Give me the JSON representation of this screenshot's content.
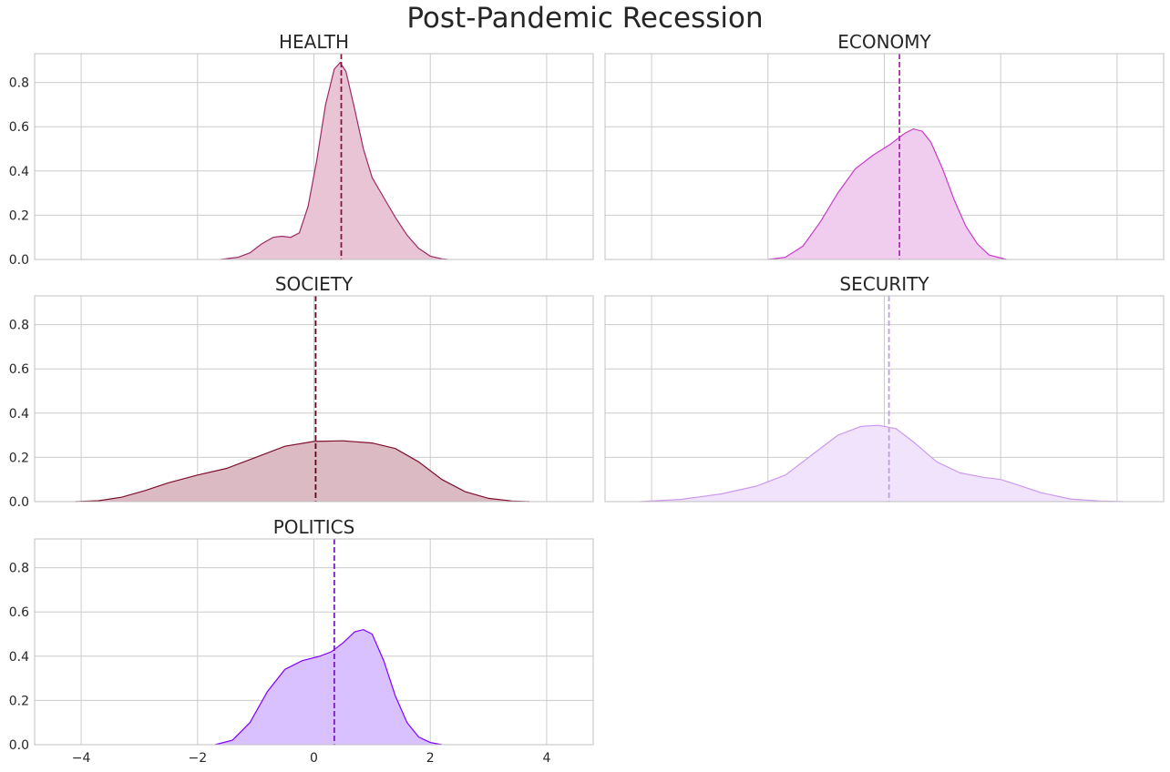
{
  "chart_data": {
    "type": "kde-facets",
    "title": "Post-Pandemic Recession",
    "xlim": [
      -4.8,
      4.8
    ],
    "ylim": [
      0,
      0.93
    ],
    "x_ticks": [
      -4,
      -2,
      0,
      2,
      4
    ],
    "x_tick_labels": [
      "−4",
      "−2",
      "0",
      "2",
      "4"
    ],
    "y_ticks": [
      0,
      0.2,
      0.4,
      0.6,
      0.8
    ],
    "y_tick_labels": [
      "0.0",
      "0.2",
      "0.4",
      "0.6",
      "0.8"
    ],
    "grid": true,
    "panels": [
      {
        "name": "HEALTH",
        "color": "#9e2a66",
        "fill": "#e8c4d4",
        "mean": 0.47,
        "mean_color": "#7a1a40",
        "points": [
          [
            -1.6,
            0
          ],
          [
            -1.3,
            0.01
          ],
          [
            -1.1,
            0.03
          ],
          [
            -0.9,
            0.07
          ],
          [
            -0.7,
            0.1
          ],
          [
            -0.55,
            0.105
          ],
          [
            -0.4,
            0.1
          ],
          [
            -0.25,
            0.12
          ],
          [
            -0.1,
            0.24
          ],
          [
            0.05,
            0.45
          ],
          [
            0.2,
            0.7
          ],
          [
            0.35,
            0.86
          ],
          [
            0.45,
            0.89
          ],
          [
            0.55,
            0.85
          ],
          [
            0.7,
            0.68
          ],
          [
            0.85,
            0.5
          ],
          [
            1.0,
            0.37
          ],
          [
            1.2,
            0.28
          ],
          [
            1.4,
            0.19
          ],
          [
            1.6,
            0.11
          ],
          [
            1.8,
            0.05
          ],
          [
            2.0,
            0.015
          ],
          [
            2.2,
            0.003
          ],
          [
            2.3,
            0
          ]
        ]
      },
      {
        "name": "ECONOMY",
        "color": "#c63cc9",
        "fill": "#f0cdef",
        "mean": 0.26,
        "mean_color": "#b02ab8",
        "points": [
          [
            -2.0,
            0
          ],
          [
            -1.7,
            0.01
          ],
          [
            -1.4,
            0.06
          ],
          [
            -1.1,
            0.17
          ],
          [
            -0.8,
            0.3
          ],
          [
            -0.5,
            0.41
          ],
          [
            -0.2,
            0.47
          ],
          [
            0.1,
            0.52
          ],
          [
            0.35,
            0.57
          ],
          [
            0.5,
            0.59
          ],
          [
            0.65,
            0.58
          ],
          [
            0.8,
            0.53
          ],
          [
            1.0,
            0.41
          ],
          [
            1.2,
            0.27
          ],
          [
            1.4,
            0.15
          ],
          [
            1.6,
            0.07
          ],
          [
            1.8,
            0.02
          ],
          [
            2.1,
            0
          ]
        ]
      },
      {
        "name": "SOCIETY",
        "color": "#7d0f2a",
        "fill": "#dcbac4",
        "mean": 0.03,
        "mean_color": "#5a0818",
        "points": [
          [
            -4.1,
            0
          ],
          [
            -3.7,
            0.004
          ],
          [
            -3.3,
            0.02
          ],
          [
            -2.9,
            0.05
          ],
          [
            -2.5,
            0.085
          ],
          [
            -2.0,
            0.12
          ],
          [
            -1.5,
            0.15
          ],
          [
            -1.0,
            0.2
          ],
          [
            -0.5,
            0.25
          ],
          [
            0.0,
            0.272
          ],
          [
            0.5,
            0.275
          ],
          [
            1.0,
            0.265
          ],
          [
            1.4,
            0.24
          ],
          [
            1.8,
            0.18
          ],
          [
            2.2,
            0.1
          ],
          [
            2.6,
            0.045
          ],
          [
            3.0,
            0.015
          ],
          [
            3.4,
            0.003
          ],
          [
            3.7,
            0
          ]
        ]
      },
      {
        "name": "SECURITY",
        "color": "#cc99ee",
        "fill": "#f1e3fc",
        "mean": 0.08,
        "mean_color": "#c89be6",
        "points": [
          [
            -4.2,
            0
          ],
          [
            -3.5,
            0.01
          ],
          [
            -2.8,
            0.035
          ],
          [
            -2.2,
            0.07
          ],
          [
            -1.7,
            0.12
          ],
          [
            -1.2,
            0.22
          ],
          [
            -0.8,
            0.3
          ],
          [
            -0.4,
            0.34
          ],
          [
            -0.1,
            0.345
          ],
          [
            0.2,
            0.33
          ],
          [
            0.5,
            0.27
          ],
          [
            0.9,
            0.18
          ],
          [
            1.3,
            0.13
          ],
          [
            1.7,
            0.11
          ],
          [
            2.0,
            0.1
          ],
          [
            2.3,
            0.075
          ],
          [
            2.7,
            0.04
          ],
          [
            3.2,
            0.012
          ],
          [
            3.7,
            0.003
          ],
          [
            4.1,
            0
          ]
        ]
      },
      {
        "name": "POLITICS",
        "color": "#7f00ff",
        "fill": "#d9c0ff",
        "mean": 0.35,
        "mean_color": "#7a1ec0",
        "points": [
          [
            -1.7,
            0
          ],
          [
            -1.4,
            0.02
          ],
          [
            -1.1,
            0.1
          ],
          [
            -0.8,
            0.24
          ],
          [
            -0.5,
            0.34
          ],
          [
            -0.2,
            0.38
          ],
          [
            0.1,
            0.4
          ],
          [
            0.3,
            0.42
          ],
          [
            0.5,
            0.46
          ],
          [
            0.7,
            0.51
          ],
          [
            0.85,
            0.52
          ],
          [
            1.0,
            0.5
          ],
          [
            1.2,
            0.38
          ],
          [
            1.4,
            0.22
          ],
          [
            1.6,
            0.1
          ],
          [
            1.8,
            0.035
          ],
          [
            2.0,
            0.01
          ],
          [
            2.2,
            0
          ]
        ]
      }
    ]
  }
}
